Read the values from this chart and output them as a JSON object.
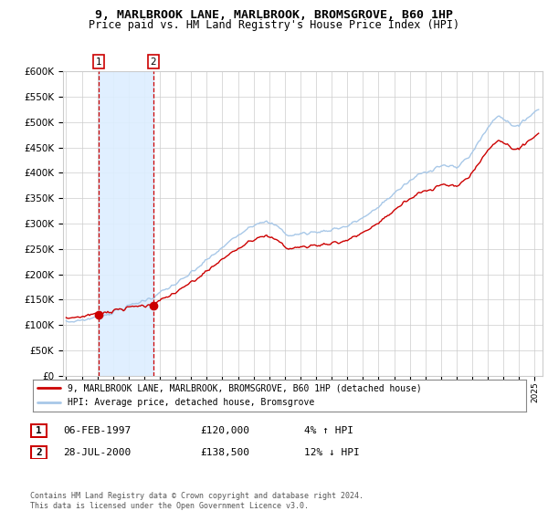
{
  "title": "9, MARLBROOK LANE, MARLBROOK, BROMSGROVE, B60 1HP",
  "subtitle": "Price paid vs. HM Land Registry's House Price Index (HPI)",
  "ylim": [
    0,
    600000
  ],
  "yticks": [
    0,
    50000,
    100000,
    150000,
    200000,
    250000,
    300000,
    350000,
    400000,
    450000,
    500000,
    550000,
    600000
  ],
  "xlim_start": 1994.8,
  "xlim_end": 2025.5,
  "sale1_year": 1997.09,
  "sale1_price": 120000,
  "sale2_year": 2000.57,
  "sale2_price": 138500,
  "hpi_color": "#a8c8e8",
  "price_color": "#cc0000",
  "dot_color": "#cc0000",
  "vline_color": "#cc0000",
  "shade_color": "#ddeeff",
  "grid_color": "#cccccc",
  "bg_color": "#ffffff",
  "legend_line1": "9, MARLBROOK LANE, MARLBROOK, BROMSGROVE, B60 1HP (detached house)",
  "legend_line2": "HPI: Average price, detached house, Bromsgrove",
  "row1": [
    "1",
    "06-FEB-1997",
    "£120,000",
    "4% ↑ HPI"
  ],
  "row2": [
    "2",
    "28-JUL-2000",
    "£138,500",
    "12% ↓ HPI"
  ],
  "footer": "Contains HM Land Registry data © Crown copyright and database right 2024.\nThis data is licensed under the Open Government Licence v3.0."
}
